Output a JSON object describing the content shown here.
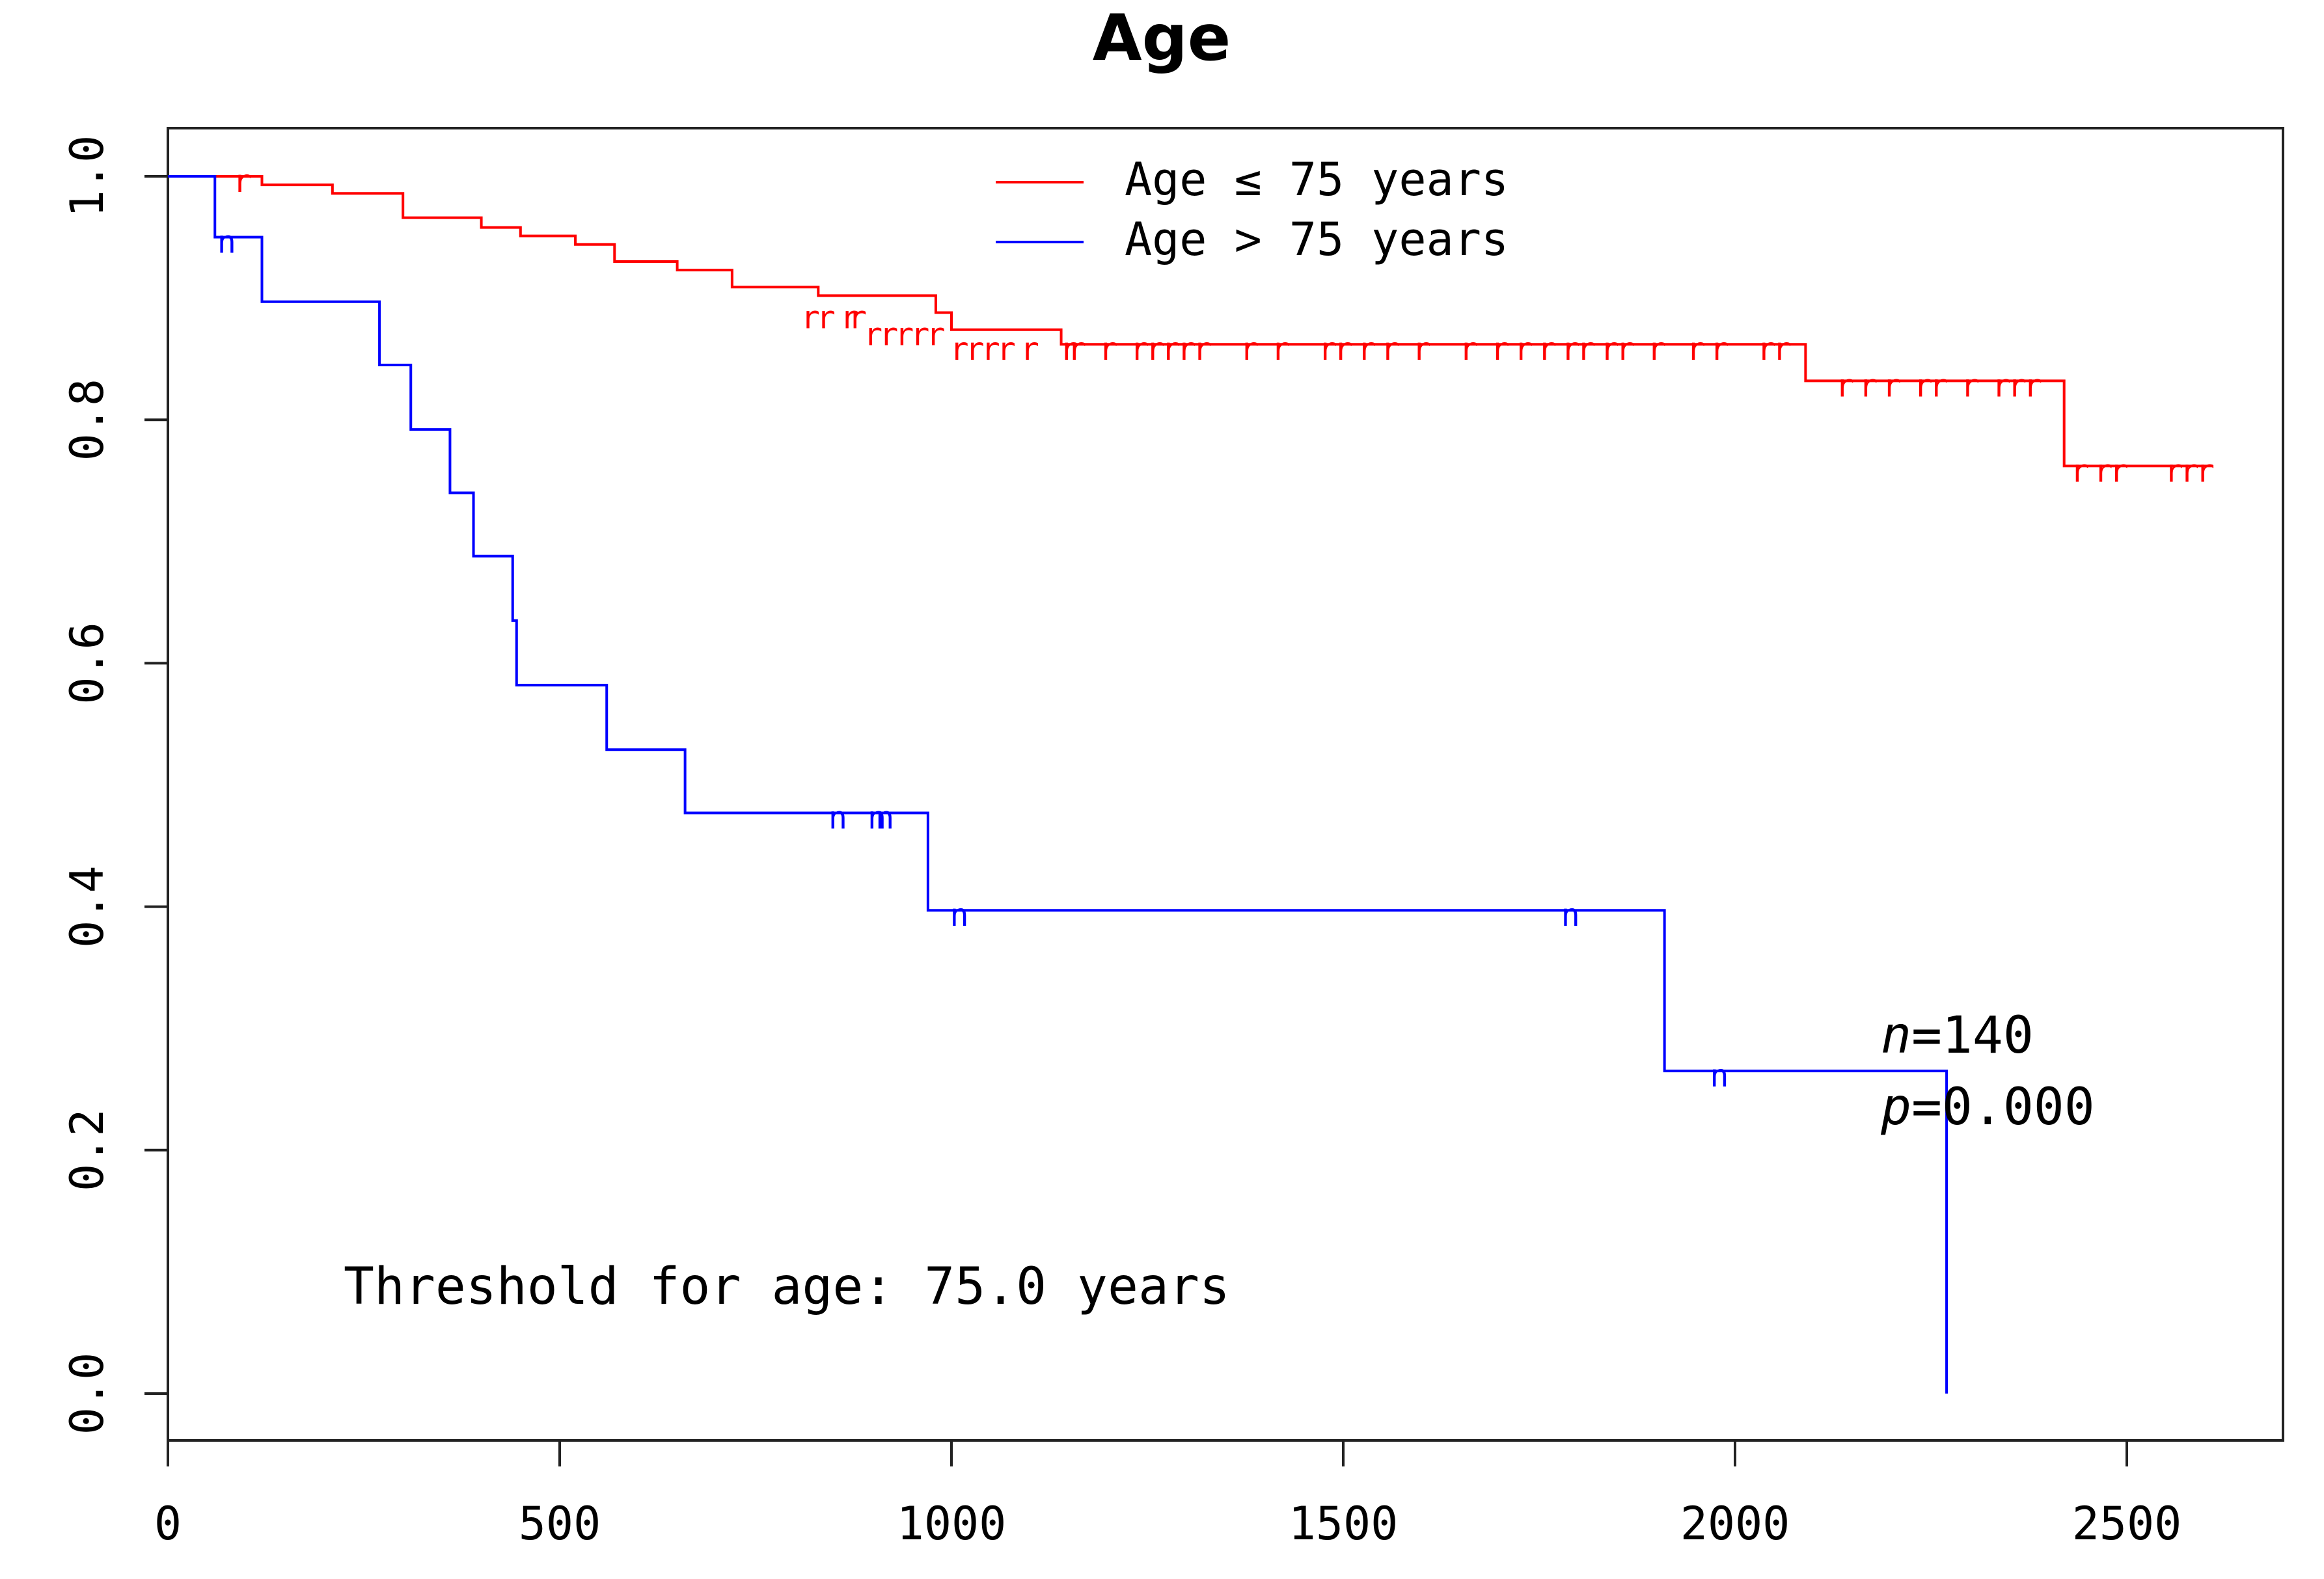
{
  "chart_data": {
    "type": "line",
    "title": "Age",
    "xlabel": "",
    "ylabel": "",
    "xlim": [
      0,
      2700
    ],
    "ylim": [
      0,
      1.0
    ],
    "x_ticks": [
      "0",
      "500",
      "1000",
      "1500",
      "2000",
      "2500"
    ],
    "y_ticks": [
      "0.0",
      "0.2",
      "0.4",
      "0.6",
      "0.8",
      "1.0"
    ],
    "grid": false,
    "legend_position": "top-center",
    "series": [
      {
        "name": "Age ≤ 75 years",
        "color": "#ff0000",
        "censor_mark": "r",
        "steps": [
          [
            0,
            1.0
          ],
          [
            120,
            0.993
          ],
          [
            210,
            0.986
          ],
          [
            300,
            0.966
          ],
          [
            400,
            0.958
          ],
          [
            450,
            0.951
          ],
          [
            520,
            0.944
          ],
          [
            570,
            0.93
          ],
          [
            650,
            0.923
          ],
          [
            720,
            0.909
          ],
          [
            830,
            0.902
          ],
          [
            980,
            0.888
          ],
          [
            1000,
            0.874
          ],
          [
            1140,
            0.862
          ],
          [
            1210,
            0.862
          ],
          [
            1350,
            0.862
          ],
          [
            1900,
            0.862
          ],
          [
            2090,
            0.832
          ],
          [
            2370,
            0.832
          ],
          [
            2420,
            0.762
          ],
          [
            2610,
            0.762
          ]
        ],
        "censored": [
          [
            95,
            1.0
          ],
          [
            820,
            0.888
          ],
          [
            840,
            0.888
          ],
          [
            870,
            0.888
          ],
          [
            880,
            0.888
          ],
          [
            900,
            0.874
          ],
          [
            920,
            0.874
          ],
          [
            940,
            0.874
          ],
          [
            960,
            0.874
          ],
          [
            980,
            0.874
          ],
          [
            1010,
            0.862
          ],
          [
            1030,
            0.862
          ],
          [
            1050,
            0.862
          ],
          [
            1070,
            0.862
          ],
          [
            1100,
            0.862
          ],
          [
            1150,
            0.862
          ],
          [
            1160,
            0.862
          ],
          [
            1200,
            0.862
          ],
          [
            1240,
            0.862
          ],
          [
            1260,
            0.862
          ],
          [
            1280,
            0.862
          ],
          [
            1300,
            0.862
          ],
          [
            1320,
            0.862
          ],
          [
            1380,
            0.862
          ],
          [
            1420,
            0.862
          ],
          [
            1480,
            0.862
          ],
          [
            1500,
            0.862
          ],
          [
            1530,
            0.862
          ],
          [
            1560,
            0.862
          ],
          [
            1600,
            0.862
          ],
          [
            1660,
            0.862
          ],
          [
            1700,
            0.862
          ],
          [
            1730,
            0.862
          ],
          [
            1760,
            0.862
          ],
          [
            1790,
            0.862
          ],
          [
            1810,
            0.862
          ],
          [
            1840,
            0.862
          ],
          [
            1860,
            0.862
          ],
          [
            1900,
            0.862
          ],
          [
            1950,
            0.862
          ],
          [
            1980,
            0.862
          ],
          [
            2040,
            0.862
          ],
          [
            2060,
            0.862
          ],
          [
            2140,
            0.832
          ],
          [
            2170,
            0.832
          ],
          [
            2200,
            0.832
          ],
          [
            2240,
            0.832
          ],
          [
            2260,
            0.832
          ],
          [
            2300,
            0.832
          ],
          [
            2340,
            0.832
          ],
          [
            2360,
            0.832
          ],
          [
            2380,
            0.832
          ],
          [
            2440,
            0.762
          ],
          [
            2470,
            0.762
          ],
          [
            2490,
            0.762
          ],
          [
            2560,
            0.762
          ],
          [
            2580,
            0.762
          ],
          [
            2600,
            0.762
          ]
        ]
      },
      {
        "name": "Age > 75 years",
        "color": "#0000ff",
        "censor_mark": "n",
        "steps": [
          [
            0,
            1.0
          ],
          [
            60,
            0.95
          ],
          [
            120,
            0.897
          ],
          [
            270,
            0.845
          ],
          [
            310,
            0.792
          ],
          [
            360,
            0.74
          ],
          [
            390,
            0.688
          ],
          [
            440,
            0.635
          ],
          [
            445,
            0.582
          ],
          [
            560,
            0.529
          ],
          [
            660,
            0.477
          ],
          [
            970,
            0.397
          ],
          [
            1910,
            0.265
          ],
          [
            2270,
            0.0
          ]
        ],
        "censored": [
          [
            75,
            0.95
          ],
          [
            855,
            0.477
          ],
          [
            905,
            0.477
          ],
          [
            915,
            0.477
          ],
          [
            1010,
            0.397
          ],
          [
            1790,
            0.397
          ],
          [
            1980,
            0.265
          ]
        ]
      }
    ],
    "annotations": {
      "n_label": "n",
      "n_value": "=140",
      "p_label": "p",
      "p_value": "=0.000",
      "threshold": "Threshold for age: 75.0 years"
    }
  }
}
